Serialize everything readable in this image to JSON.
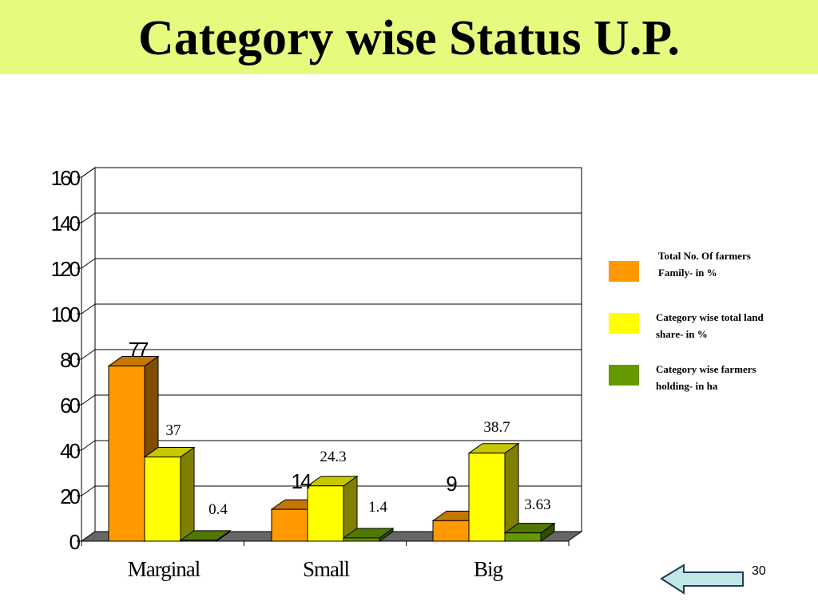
{
  "slide": {
    "title": "Category wise Status U.P.",
    "page_number": "30",
    "nav_icon": "left-arrow-icon"
  },
  "legend": [
    {
      "label": "Total No. Of farmers\n Family- in %",
      "color": "#ff9900"
    },
    {
      "label": "Category wise  total land\nshare- in %",
      "color": "#ffff00"
    },
    {
      "label": "Category wise  farmers\n holding- in ha",
      "color": "#669900"
    }
  ],
  "chart_data": {
    "type": "bar",
    "categories": [
      "Marginal",
      "Small",
      "Big"
    ],
    "series": [
      {
        "name": "Total No. Of farmers Family- in %",
        "values": [
          77,
          14,
          9
        ],
        "labels": [
          "77",
          "14",
          "9"
        ],
        "color": "#ff9900"
      },
      {
        "name": "Category wise  total land share- in %",
        "values": [
          37,
          24.3,
          38.7
        ],
        "labels": [
          "37",
          "24.3",
          "38.7"
        ],
        "color": "#ffff00"
      },
      {
        "name": "Category wise  farmers holding- in ha",
        "values": [
          0.4,
          1.4,
          3.63
        ],
        "labels": [
          "0.4",
          "1.4",
          "3.63"
        ],
        "color": "#669900"
      }
    ],
    "ylim": [
      0,
      160
    ],
    "yticks": [
      0,
      20,
      40,
      60,
      80,
      100,
      120,
      140,
      160
    ],
    "grid": true,
    "legend_position": "right"
  }
}
